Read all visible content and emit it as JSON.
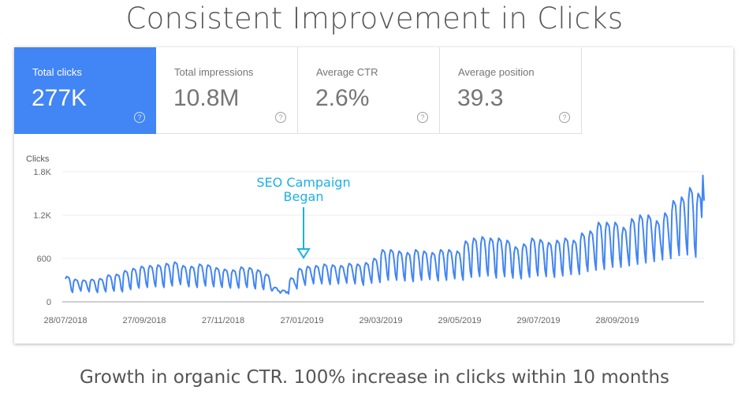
{
  "title": "Consistent Improvement in Clicks",
  "footer": "Growth in organic CTR. 100% increase in clicks within 10 months",
  "metrics": [
    {
      "label": "Total clicks",
      "value": "277K",
      "active": true
    },
    {
      "label": "Total impressions",
      "value": "10.8M",
      "active": false
    },
    {
      "label": "Average CTR",
      "value": "2.6%",
      "active": false
    },
    {
      "label": "Average position",
      "value": "39.3",
      "active": false
    }
  ],
  "help_icon": "?",
  "colors": {
    "accent": "#4285f4",
    "line": "#4285f4",
    "annotation": "#1ab0e8"
  },
  "chart_data": {
    "type": "line",
    "ylabel": "Clicks",
    "ylim": [
      0,
      1800
    ],
    "yticks": [
      {
        "v": 0,
        "label": "0"
      },
      {
        "v": 600,
        "label": "600"
      },
      {
        "v": 1200,
        "label": "1.2K"
      },
      {
        "v": 1800,
        "label": "1.8K"
      }
    ],
    "xticks": [
      "28/07/2018",
      "27/09/2018",
      "27/11/2018",
      "27/01/2019",
      "29/03/2019",
      "29/05/2019",
      "29/07/2019",
      "28/09/2019"
    ],
    "grid": true,
    "series": [
      {
        "weekly_peaks": [
          350,
          310,
          300,
          310,
          320,
          370,
          380,
          430,
          460,
          490,
          500,
          510,
          530,
          550,
          500,
          490,
          520,
          510,
          470,
          450,
          440,
          480,
          470,
          440,
          380,
          200,
          160,
          330,
          460,
          490,
          500,
          520,
          510,
          500,
          530,
          520,
          540,
          600,
          720,
          720,
          700,
          680,
          720,
          700,
          680,
          720,
          720,
          700,
          840,
          880,
          900,
          880,
          880,
          850,
          760,
          800,
          880,
          860,
          820,
          850,
          880,
          850,
          950,
          980,
          1100,
          1100,
          1100,
          1030,
          1150,
          1200,
          1200,
          1120,
          1230,
          1400,
          1450,
          1580,
          1500
        ],
        "weekly_troughs": [
          130,
          150,
          140,
          130,
          140,
          150,
          140,
          170,
          190,
          200,
          210,
          200,
          220,
          240,
          210,
          200,
          220,
          210,
          200,
          190,
          190,
          200,
          180,
          170,
          150,
          120,
          110,
          180,
          230,
          250,
          250,
          240,
          250,
          260,
          250,
          230,
          260,
          270,
          300,
          300,
          290,
          280,
          300,
          310,
          290,
          300,
          320,
          300,
          340,
          350,
          360,
          330,
          350,
          330,
          320,
          340,
          360,
          350,
          340,
          360,
          380,
          380,
          420,
          440,
          450,
          480,
          480,
          500,
          520,
          540,
          560,
          580,
          600,
          640,
          650,
          620,
          1400
        ]
      }
    ],
    "annotation": {
      "text_line1": "SEO Campaign",
      "text_line2": "Began",
      "date": "27/01/2019"
    }
  }
}
